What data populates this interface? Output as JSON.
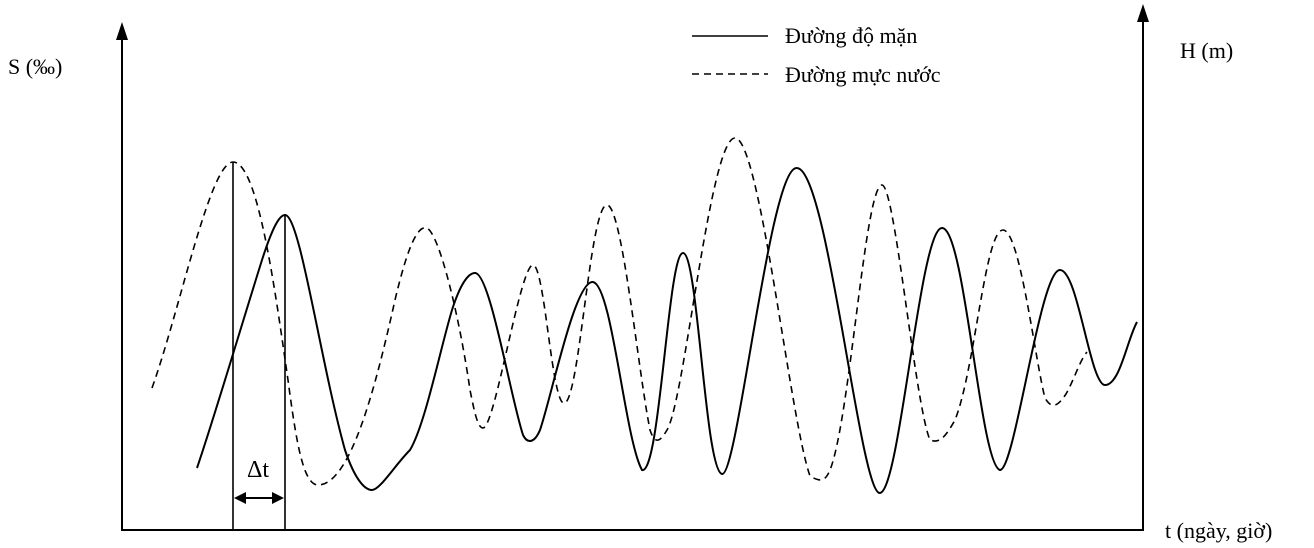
{
  "labels": {
    "y_left": "S (‰)",
    "y_right": "H (m)",
    "x_axis": "t (ngày, giờ)",
    "delta": "Δt"
  },
  "legend": [
    {
      "style": "solid",
      "label": "Đường độ mặn"
    },
    {
      "style": "dashed",
      "label": "Đường mực nước"
    }
  ],
  "colors": {
    "line": "#000000",
    "background": "#ffffff"
  }
}
